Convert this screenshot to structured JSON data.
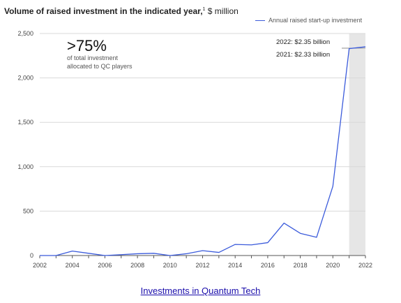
{
  "title": {
    "bold": "Volume of raised investment in the indicated year,",
    "footnote": "1",
    "unit": " $ million"
  },
  "legend": {
    "label": "Annual raised start-up investment",
    "color": "#3b5bdb"
  },
  "annotation": {
    "big": ">75%",
    "sub": "of total investment\nallocated to QC players"
  },
  "callouts": {
    "y2022": "2022:  $2.35 billion",
    "y2021": "2021:  $2.33 billion"
  },
  "footer": {
    "link_text": "Investments in Quantum Tech"
  },
  "chart_data": {
    "type": "line",
    "x": [
      2002,
      2003,
      2004,
      2005,
      2006,
      2007,
      2008,
      2009,
      2010,
      2011,
      2012,
      2013,
      2014,
      2015,
      2016,
      2017,
      2018,
      2019,
      2020,
      2021,
      2022
    ],
    "series": [
      {
        "name": "Annual raised start-up investment",
        "values": [
          0,
          0,
          50,
          25,
          0,
          10,
          20,
          25,
          0,
          20,
          55,
          35,
          125,
          120,
          145,
          365,
          250,
          205,
          780,
          2330,
          2350
        ]
      }
    ],
    "xlim": [
      2002,
      2022
    ],
    "ylim": [
      0,
      2500
    ],
    "xticks": [
      2002,
      2004,
      2006,
      2008,
      2010,
      2012,
      2014,
      2016,
      2018,
      2020,
      2022
    ],
    "yticks": [
      0,
      500,
      1000,
      1500,
      2000,
      2500
    ],
    "ytick_labels": [
      "0",
      "500",
      "1,000",
      "1,500",
      "2,000",
      "2,500"
    ],
    "highlight_x_range": [
      2021,
      2022
    ],
    "highlight_color": "#e6e6e6",
    "grid": true,
    "legend_position": "top-right"
  }
}
